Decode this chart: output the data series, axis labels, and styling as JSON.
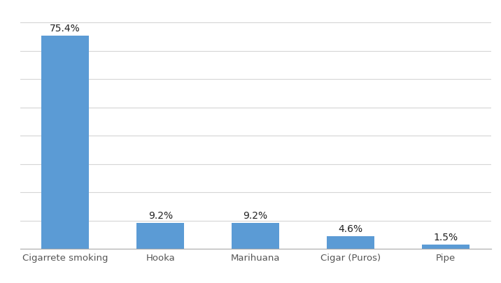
{
  "categories": [
    "Cigarrete smoking",
    "Hooka",
    "Marihuana",
    "Cigar (Puros)",
    "Pipe"
  ],
  "values": [
    75.4,
    9.2,
    9.2,
    4.6,
    1.5
  ],
  "labels": [
    "75.4%",
    "9.2%",
    "9.2%",
    "4.6%",
    "1.5%"
  ],
  "bar_color": "#5b9bd5",
  "background_color": "#ffffff",
  "ylim": [
    0,
    83
  ],
  "yticks": [
    0,
    10,
    20,
    30,
    40,
    50,
    60,
    70,
    80
  ],
  "grid_color": "#d5d5d5",
  "label_fontsize": 10,
  "tick_fontsize": 9.5,
  "bar_width": 0.5
}
